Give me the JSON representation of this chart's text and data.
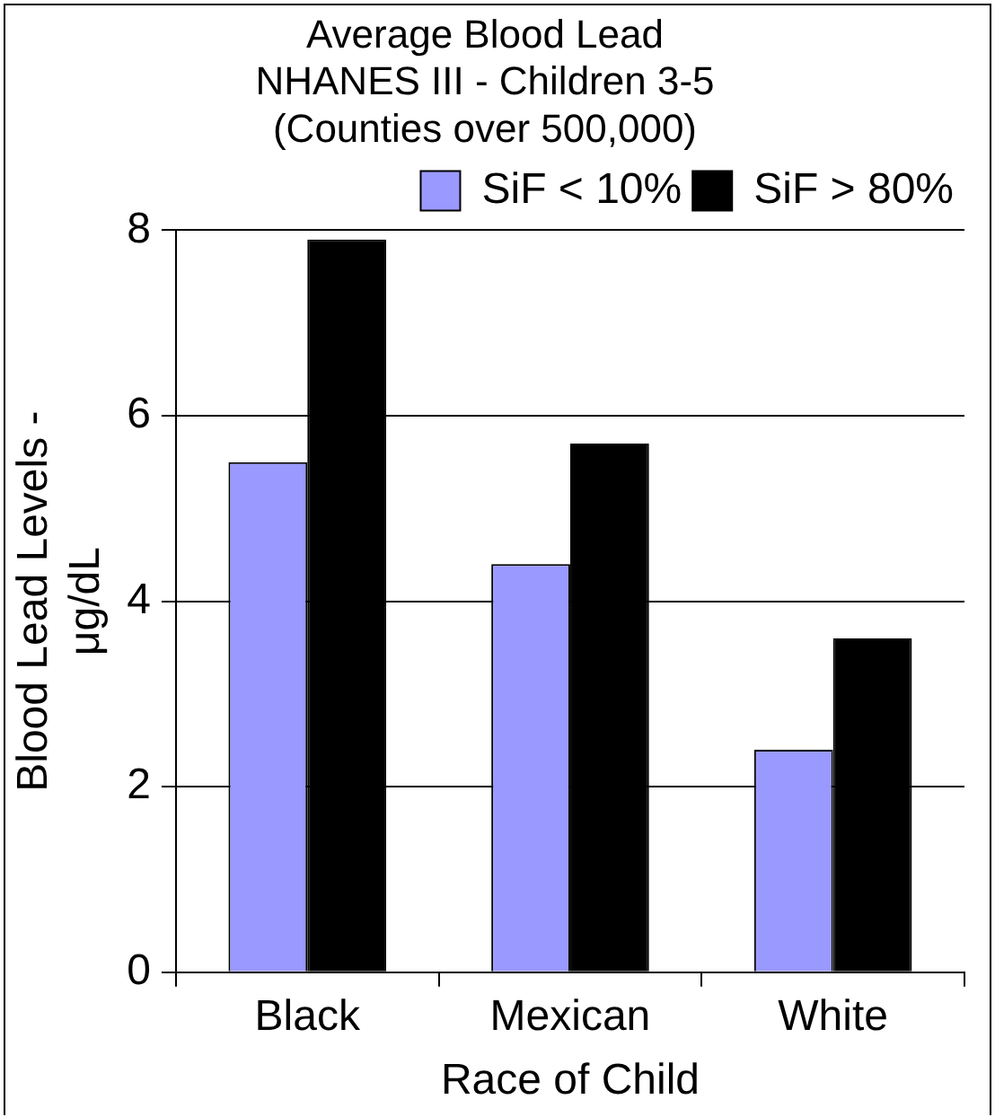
{
  "chart_data": {
    "type": "bar",
    "title": [
      "Average Blood Lead",
      "NHANES III - Children 3-5",
      "(Counties over 500,000)"
    ],
    "xlabel": "Race of Child",
    "ylabel": [
      "Blood Lead Levels -",
      "μg/dL"
    ],
    "categories": [
      "Black",
      "Mexican",
      "White"
    ],
    "series": [
      {
        "name": "SiF < 10%",
        "color": "#9999ff",
        "values": [
          5.5,
          4.4,
          2.4
        ]
      },
      {
        "name": "SiF > 80%",
        "color": "#000000",
        "values": [
          7.9,
          5.7,
          3.6
        ]
      }
    ],
    "ylim": [
      0,
      8
    ],
    "yticks": [
      0,
      2,
      4,
      6,
      8
    ],
    "grid": "y",
    "legend": "top right"
  }
}
